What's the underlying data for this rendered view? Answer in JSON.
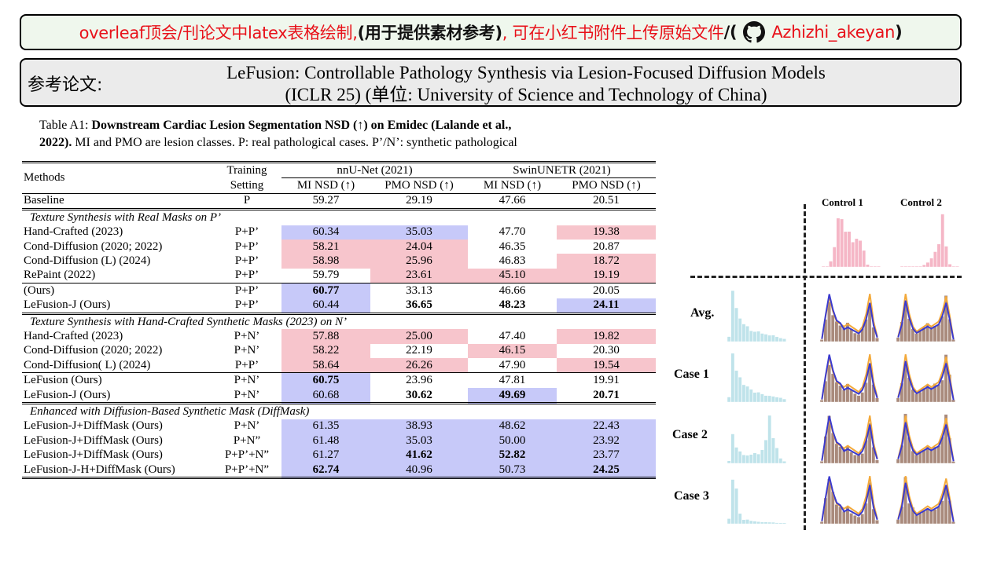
{
  "banner": {
    "part1": "overleaf顶会/刊论文中latex表格绘制,",
    "part2": "(用于提供素材参考)",
    "part3": ",  可在小红书附件上传原始文件",
    "part4": "/(",
    "handle": "Azhizhi_akeyan",
    "close": ")",
    "icon": "github-icon",
    "accent": "#e8121a"
  },
  "reference": {
    "label": "参考论文:",
    "title_line1": "LeFusion: Controllable Pathology Synthesis via Lesion-Focused Diffusion Models",
    "title_line2": "(ICLR 25) (单位: University of Science and Technology of China)"
  },
  "caption": {
    "prefix": "Table A1:  ",
    "bold1": "Downstream Cardiac Lesion Segmentation NSD (↑) on Emidec  (Lalande et al.,",
    "bold2": "2022).",
    "rest": " MI and PMO are lesion classes.  P: real pathological cases.  P’/N’: synthetic pathological"
  },
  "table": {
    "headers": {
      "methods": "Methods",
      "training1": "Training",
      "training2": "Setting",
      "nnunet": "nnU-Net (2021)",
      "swin": "SwinUNETR (2021)",
      "mi": "MI NSD (↑)",
      "pmo": "PMO NSD (↑)"
    },
    "baseline": [
      "Baseline",
      "P",
      "59.27",
      "29.19",
      "47.66",
      "20.51"
    ],
    "sections": [
      {
        "title": "Texture Synthesis with Real Masks on P’",
        "rows": [
          [
            "Hand-Crafted (2023)",
            "P+P’",
            "60.34",
            "35.03",
            "47.70",
            "19.38"
          ],
          [
            "Cond-Diffusion (2020; 2022)",
            "P+P’",
            "58.21",
            "24.04",
            "46.35",
            "20.87"
          ],
          [
            "Cond-Diffusion (L) (2024)",
            "P+P’",
            "58.98",
            "25.96",
            "46.83",
            "18.72"
          ],
          [
            "RePaint (2022)",
            "P+P’",
            "59.79",
            "23.61",
            "45.10",
            "19.19"
          ]
        ],
        "ours": [
          [
            "(Ours)",
            "P+P’",
            "60.77",
            "33.13",
            "46.66",
            "20.05"
          ],
          [
            "LeFusion-J (Ours)",
            "P+P’",
            "60.44",
            "36.65",
            "48.23",
            "24.11"
          ]
        ]
      },
      {
        "title": "Texture Synthesis with Hand-Crafted Synthetic Masks (2023) on N’",
        "rows": [
          [
            "Hand-Crafted (2023)",
            "P+N’",
            "57.88",
            "25.00",
            "47.40",
            "19.82"
          ],
          [
            "Cond-Diffusion (2020; 2022)",
            "P+N’",
            "58.22",
            "22.19",
            "46.15",
            "20.30"
          ],
          [
            "Cond-Diffusion( L) (2024)",
            "P+P’",
            "58.64",
            "26.26",
            "47.90",
            "19.54"
          ]
        ],
        "ours": [
          [
            "LeFusion (Ours)",
            "P+N’",
            "60.75",
            "23.96",
            "47.81",
            "19.91"
          ],
          [
            "LeFusion-J (Ours)",
            "P+N’",
            "60.68",
            "30.62",
            "49.69",
            "20.71"
          ]
        ]
      },
      {
        "title": "Enhanced with Diffusion-Based Synthetic Mask (DiffMask)",
        "rows": [
          [
            "LeFusion-J+DiffMask (Ours)",
            "P+N’",
            "61.35",
            "38.93",
            "48.62",
            "22.43"
          ],
          [
            "LeFusion-J+DiffMask (Ours)",
            "P+N”",
            "61.48",
            "35.03",
            "50.00",
            "23.92"
          ],
          [
            "LeFusion-J+DiffMask (Ours)",
            "P+P’+N”",
            "61.27",
            "41.62",
            "52.82",
            "23.77"
          ],
          [
            "LeFusion-J-H+DiffMask (Ours)",
            "P+P’+N”",
            "62.74",
            "40.96",
            "50.73",
            "24.25"
          ]
        ]
      }
    ],
    "colors": {
      "blue": "#c7c9f9",
      "pink": "#f7c5cc"
    }
  },
  "figure": {
    "col1": "Control 1",
    "col2": "Control 2",
    "rows": [
      "Avg.",
      "Case 1",
      "Case 2",
      "Case 3"
    ],
    "colors": {
      "light_blue": "#bfe3ea",
      "pink": "#f5b6c6",
      "orange": "#f3a93a",
      "purple": "#3a3ad0",
      "brown": "#a98a7c"
    }
  }
}
